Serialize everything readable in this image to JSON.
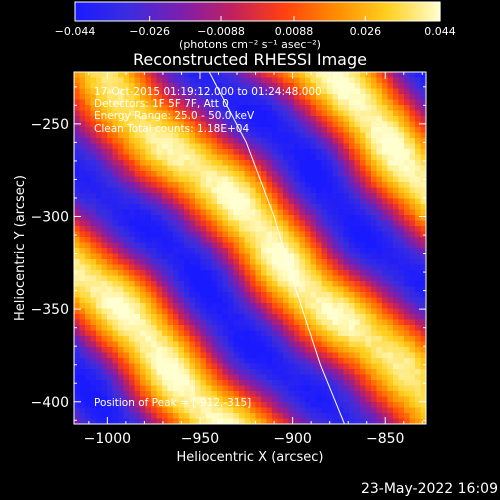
{
  "chart_data": {
    "type": "heatmap",
    "title": "Reconstructed RHESSI Image",
    "xlabel": "Heliocentric X (arcsec)",
    "ylabel": "Heliocentric Y (arcsec)",
    "xlim": [
      -1018,
      -828
    ],
    "ylim": [
      -412,
      -222
    ],
    "x_ticks": [
      -1000,
      -950,
      -900,
      -850
    ],
    "y_ticks": [
      -250,
      -300,
      -350,
      -400
    ],
    "x_tick_labels": [
      "−1000",
      "−950",
      "−900",
      "−850"
    ],
    "y_tick_labels": [
      "−250",
      "−300",
      "−350",
      "−400"
    ],
    "colorbar": {
      "range": [
        -0.044,
        0.044
      ],
      "ticks": [
        -0.044,
        -0.026,
        -0.0088,
        0.0088,
        0.026,
        0.044
      ],
      "tick_labels": [
        "−0.044",
        "−0.026",
        "−0.0088",
        "0.0088",
        "0.026",
        "0.044"
      ],
      "units_label": "(photons cm⁻² s⁻¹ asec⁻²)",
      "colormap": [
        "#1a1aff",
        "#3a2de0",
        "#7a1fb0",
        "#c02060",
        "#ff4010",
        "#ff8c00",
        "#ffd020",
        "#ffffd0"
      ]
    },
    "annotations": [
      "17-Oct-2015 01:19:12.000 to 01:24:48.000",
      "Detectors: 1F 5F 7F, Att 0",
      "Energy Range: 25.0 - 50.0 keV",
      "Clean    Total counts: 1.18E+04"
    ],
    "peak_label": "Position of Peak = [-912,-315]",
    "peak": [
      -912,
      -315
    ],
    "peak_value": 0.044,
    "limb_curve": [
      [
        -945,
        -222
      ],
      [
        -925,
        -260
      ],
      [
        -910,
        -300
      ],
      [
        -898,
        -340
      ],
      [
        -885,
        -380
      ],
      [
        -872,
        -412
      ]
    ]
  },
  "footer": {
    "date": "23-May-2022 16:09"
  }
}
